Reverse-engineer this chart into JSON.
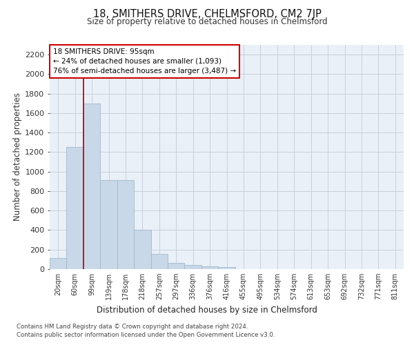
{
  "title": "18, SMITHERS DRIVE, CHELMSFORD, CM2 7JP",
  "subtitle": "Size of property relative to detached houses in Chelmsford",
  "xlabel": "Distribution of detached houses by size in Chelmsford",
  "ylabel": "Number of detached properties",
  "categories": [
    "20sqm",
    "60sqm",
    "99sqm",
    "139sqm",
    "178sqm",
    "218sqm",
    "257sqm",
    "297sqm",
    "336sqm",
    "376sqm",
    "416sqm",
    "455sqm",
    "495sqm",
    "534sqm",
    "574sqm",
    "613sqm",
    "653sqm",
    "692sqm",
    "732sqm",
    "771sqm",
    "811sqm"
  ],
  "values": [
    110,
    1250,
    1700,
    910,
    910,
    400,
    155,
    65,
    40,
    30,
    20,
    0,
    0,
    0,
    0,
    0,
    0,
    0,
    0,
    0,
    0
  ],
  "bar_color": "#c8d8e8",
  "bar_edge_color": "#a0b8cc",
  "vline_color": "#cc0000",
  "annotation_text": "18 SMITHERS DRIVE: 95sqm\n← 24% of detached houses are smaller (1,093)\n76% of semi-detached houses are larger (3,487) →",
  "annotation_box_color": "#ffffff",
  "annotation_box_edge": "#cc0000",
  "ylim": [
    0,
    2300
  ],
  "yticks": [
    0,
    200,
    400,
    600,
    800,
    1000,
    1200,
    1400,
    1600,
    1800,
    2000,
    2200
  ],
  "plot_bg_color": "#eaf0f8",
  "grid_color": "#c8d0dc",
  "footer_line1": "Contains HM Land Registry data © Crown copyright and database right 2024.",
  "footer_line2": "Contains public sector information licensed under the Open Government Licence v3.0."
}
